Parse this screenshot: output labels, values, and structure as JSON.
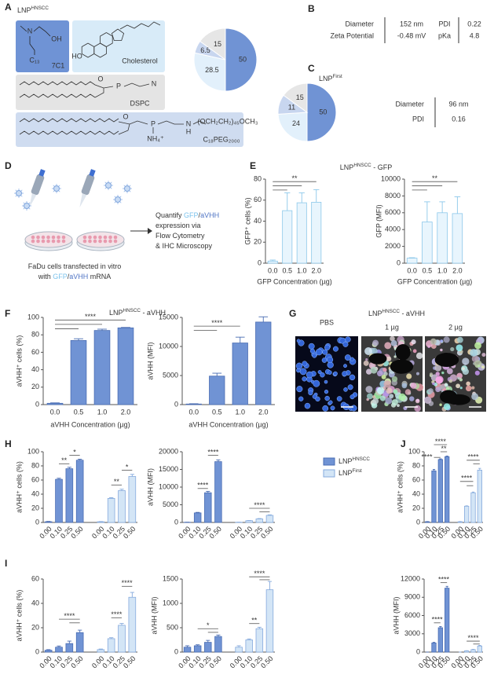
{
  "panels": {
    "A": {
      "label": "A",
      "title": {
        "parts": [
          {
            "text": "LNP"
          },
          {
            "text": "HNSCC",
            "sup": true
          }
        ]
      },
      "structures": {
        "c7c1": {
          "name": "7C1",
          "atoms": [
            "N",
            "OH",
            "C₁₃"
          ]
        },
        "cholesterol": {
          "name": "Cholesterol",
          "atoms": [
            "HO"
          ]
        },
        "dspc": {
          "name": "DSPC",
          "atoms": [
            "O",
            "P",
            "N"
          ]
        },
        "peg": {
          "name": "C₁₈PEG₂₀₀₀",
          "atoms": [
            "O",
            "P",
            "NH₄⁺",
            "N",
            "H",
            "(OCH₂CH₂)₄₅OCH₃"
          ]
        }
      }
    },
    "B": {
      "label": "B",
      "rows": [
        [
          "Diameter",
          "152 nm",
          "PDI",
          "0.22"
        ],
        [
          "Zeta Potential",
          "-0.48 mV",
          "pKa",
          "4.8"
        ]
      ]
    },
    "C": {
      "label": "C",
      "title": {
        "parts": [
          {
            "text": "LNP"
          },
          {
            "text": "First",
            "sup": true
          }
        ]
      },
      "rows": [
        [
          "Diameter",
          "96 nm"
        ],
        [
          "PDI",
          "0.16"
        ]
      ]
    },
    "D": {
      "label": "D",
      "left_lines": [
        {
          "parts": [
            {
              "text": "FaDu cells transfected in vitro"
            }
          ]
        },
        {
          "parts": [
            {
              "text": "with "
            },
            {
              "text": "GFP",
              "color": "#7cc3ec"
            },
            {
              "text": "/"
            },
            {
              "text": "aVHH",
              "color": "#4f74c4"
            },
            {
              "text": " mRNA"
            }
          ]
        }
      ],
      "right_lines": [
        {
          "parts": [
            {
              "text": "Quantify "
            },
            {
              "text": "GFP",
              "color": "#7cc3ec"
            },
            {
              "text": "/"
            },
            {
              "text": "aVHH",
              "color": "#4f74c4"
            }
          ]
        },
        {
          "parts": [
            {
              "text": "expression via"
            }
          ]
        },
        {
          "parts": [
            {
              "text": "Flow Cytometry"
            }
          ]
        },
        {
          "parts": [
            {
              "text": "& IHC Microscopy"
            }
          ]
        }
      ]
    },
    "E": {
      "label": "E",
      "title": {
        "color": "#8cc8ea",
        "parts": [
          {
            "text": "LNP"
          },
          {
            "text": "HNSCC",
            "sup": true
          },
          {
            "text": " - GFP"
          }
        ]
      }
    },
    "F": {
      "label": "F",
      "title": {
        "color": "#4f74c4",
        "parts": [
          {
            "text": "LNP"
          },
          {
            "text": "HNSCC",
            "sup": true
          },
          {
            "text": " - aVHH"
          }
        ]
      }
    },
    "G": {
      "label": "G",
      "title": {
        "color": "#4f74c4",
        "parts": [
          {
            "text": "LNP"
          },
          {
            "text": "HNSCC",
            "sup": true
          },
          {
            "text": " - aVHH"
          }
        ]
      },
      "images": [
        "PBS",
        "1 µg",
        "2 µg"
      ]
    },
    "H": {
      "label": "H",
      "legend": [
        {
          "color": "#7093d4",
          "edgecolor": "#4a6db3",
          "label": {
            "parts": [
              {
                "text": "LNP"
              },
              {
                "text": "HNSCC",
                "sup": true
              }
            ]
          }
        },
        {
          "color": "#d3e5f6",
          "edgecolor": "#86aadd",
          "label": {
            "parts": [
              {
                "text": "LNP"
              },
              {
                "text": "First",
                "sup": true
              }
            ]
          }
        }
      ]
    },
    "I": {
      "label": "I"
    },
    "J": {
      "label": "J"
    }
  },
  "chart_data": [
    {
      "type": "pie",
      "values": [
        50,
        28.5,
        6.5,
        15
      ],
      "colors": [
        "#7093d4",
        "#e2f0fb",
        "#c8d6ef",
        "#e6e6e6"
      ]
    },
    {
      "type": "pie",
      "values": [
        50,
        24,
        11,
        15
      ],
      "colors": [
        "#7093d4",
        "#e2f0fb",
        "#c8d6ef",
        "#e6e6e6"
      ]
    },
    {
      "type": "bar",
      "ylabel": "GFP⁺ cells (%)",
      "xlabel": "GFP Concentration (µg)",
      "categories": [
        "0.0",
        "0.5",
        "1.0",
        "2.0"
      ],
      "series": [
        {
          "color": "#e8f5fd",
          "edgecolor": "#8cc8ea",
          "values": [
            2,
            50,
            57.5,
            58
          ],
          "errors": [
            1,
            17,
            9.5,
            12
          ]
        }
      ],
      "ylim": [
        0,
        80
      ],
      "yticks": [
        0,
        20,
        40,
        60,
        80
      ],
      "annotations": [
        "**"
      ]
    },
    {
      "type": "bar",
      "ylabel": "GFP (MFI)",
      "xlabel": "GFP Concentration (µg)",
      "categories": [
        "0.0",
        "0.5",
        "1.0",
        "2.0"
      ],
      "series": [
        {
          "color": "#e8f5fd",
          "edgecolor": "#8cc8ea",
          "values": [
            600,
            4900,
            6000,
            5900
          ],
          "errors": [
            50,
            2400,
            1300,
            2000
          ]
        }
      ],
      "ylim": [
        0,
        10000
      ],
      "yticks": [
        0,
        2000,
        4000,
        6000,
        8000,
        10000
      ],
      "annotations": [
        "**"
      ]
    },
    {
      "type": "bar",
      "ylabel": "aVHH⁺ cells (%)",
      "xlabel": "aVHH Concentration (µg)",
      "categories": [
        "0.0",
        "0.5",
        "1.0",
        "2.0"
      ],
      "series": [
        {
          "color": "#7093d4",
          "edgecolor": "#4a6db3",
          "values": [
            1.5,
            73.5,
            85,
            88
          ],
          "errors": [
            0.5,
            2,
            1.5,
            0.5
          ]
        }
      ],
      "ylim": [
        0,
        100
      ],
      "yticks": [
        0,
        20,
        40,
        60,
        80,
        100
      ],
      "annotations": [
        "****"
      ]
    },
    {
      "type": "bar",
      "ylabel": "aVHH (MFI)",
      "xlabel": "aVHH Concentration (µg)",
      "categories": [
        "0.0",
        "0.5",
        "1.0",
        "2.0"
      ],
      "series": [
        {
          "color": "#7093d4",
          "edgecolor": "#4a6db3",
          "values": [
            100,
            4900,
            10600,
            14200
          ],
          "errors": [
            50,
            500,
            1000,
            900
          ]
        }
      ],
      "ylim": [
        0,
        15000
      ],
      "yticks": [
        0,
        5000,
        10000,
        15000
      ],
      "annotations": [
        "****"
      ]
    },
    {
      "type": "bar",
      "ylabel": "aVHH⁺ cells (%)",
      "categories": [
        "0.00",
        "0.10",
        "0.25",
        "0.50"
      ],
      "series": [
        {
          "color": "#7093d4",
          "edgecolor": "#4a6db3",
          "values": [
            1,
            61,
            76,
            88
          ],
          "errors": [
            0.5,
            1.5,
            2,
            1.5
          ]
        },
        {
          "color": "#d3e5f6",
          "edgecolor": "#86aadd",
          "values": [
            1,
            34,
            45,
            65
          ],
          "errors": [
            0.3,
            1,
            2,
            3
          ]
        }
      ],
      "ylim": [
        0,
        100
      ],
      "yticks": [
        0,
        20,
        40,
        60,
        80,
        100
      ],
      "annotations": [
        "**",
        "*",
        "**",
        "*"
      ]
    },
    {
      "type": "bar",
      "ylabel": "aVHH (MFI)",
      "categories": [
        "0.00",
        "0.10",
        "0.25",
        "0.50"
      ],
      "series": [
        {
          "color": "#7093d4",
          "edgecolor": "#4a6db3",
          "values": [
            50,
            2700,
            8400,
            17200
          ],
          "errors": [
            20,
            150,
            400,
            500
          ]
        },
        {
          "color": "#d3e5f6",
          "edgecolor": "#86aadd",
          "values": [
            50,
            500,
            1000,
            2000
          ],
          "errors": [
            20,
            50,
            100,
            150
          ]
        }
      ],
      "ylim": [
        0,
        20000
      ],
      "yticks": [
        0,
        5000,
        10000,
        15000,
        20000
      ],
      "annotations": [
        "****",
        "****",
        "****"
      ]
    },
    {
      "type": "bar",
      "ylabel": "aVHH⁺ cells (%)",
      "categories": [
        "0.00",
        "0.10",
        "0.25",
        "0.50"
      ],
      "series": [
        {
          "color": "#7093d4",
          "edgecolor": "#4a6db3",
          "values": [
            1,
            73,
            89,
            93
          ],
          "errors": [
            0.3,
            2,
            1,
            1
          ]
        },
        {
          "color": "#d3e5f6",
          "edgecolor": "#86aadd",
          "values": [
            1,
            23,
            42,
            74
          ],
          "errors": [
            0.3,
            0.5,
            1,
            2.5
          ]
        }
      ],
      "ylim": [
        0,
        100
      ],
      "yticks": [
        0,
        20,
        40,
        60,
        80,
        100
      ],
      "annotations": [
        "****",
        "**",
        "****",
        "****",
        "****"
      ]
    },
    {
      "type": "bar",
      "ylabel": "aVHH⁺ cells (%)",
      "categories": [
        "0.00",
        "0.10",
        "0.25",
        "0.50"
      ],
      "series": [
        {
          "color": "#7093d4",
          "edgecolor": "#4a6db3",
          "values": [
            1.5,
            4,
            7,
            16
          ],
          "errors": [
            0.5,
            1,
            2,
            2
          ]
        },
        {
          "color": "#d3e5f6",
          "edgecolor": "#86aadd",
          "values": [
            2,
            11,
            22,
            45
          ],
          "errors": [
            0.5,
            0.8,
            1.5,
            4
          ]
        }
      ],
      "ylim": [
        0,
        60
      ],
      "yticks": [
        0,
        20,
        40,
        60
      ],
      "annotations": [
        "****",
        "****",
        "****"
      ]
    },
    {
      "type": "bar",
      "ylabel": "aVHH (MFI)",
      "categories": [
        "0.00",
        "0.10",
        "0.25",
        "0.50"
      ],
      "series": [
        {
          "color": "#7093d4",
          "edgecolor": "#4a6db3",
          "values": [
            100,
            130,
            200,
            320
          ],
          "errors": [
            30,
            20,
            40,
            30
          ]
        },
        {
          "color": "#d3e5f6",
          "edgecolor": "#86aadd",
          "values": [
            100,
            250,
            480,
            1280
          ],
          "errors": [
            30,
            20,
            30,
            170
          ]
        }
      ],
      "ylim": [
        0,
        1500
      ],
      "yticks": [
        0,
        500,
        1000,
        1500
      ],
      "annotations": [
        "*",
        "**",
        "****"
      ]
    },
    {
      "type": "bar",
      "ylabel": "aVHH (MFI)",
      "categories": [
        "0.00",
        "0.10",
        "0.25",
        "0.50"
      ],
      "series": [
        {
          "color": "#7093d4",
          "edgecolor": "#4a6db3",
          "values": [
            0,
            1500,
            4000,
            10500
          ],
          "errors": [
            0,
            100,
            200,
            300
          ]
        },
        {
          "color": "#d3e5f6",
          "edgecolor": "#86aadd",
          "values": [
            0,
            200,
            400,
            1000
          ],
          "errors": [
            0,
            30,
            50,
            100
          ]
        }
      ],
      "ylim": [
        0,
        12000
      ],
      "yticks": [
        0,
        3000,
        6000,
        9000,
        12000
      ],
      "annotations": [
        "****",
        "****",
        "****"
      ]
    }
  ]
}
